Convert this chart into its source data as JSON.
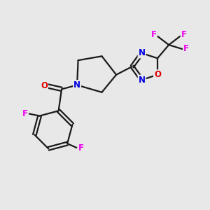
{
  "background_color": "#e8e8e8",
  "bond_color": "#1a1a1a",
  "line_width": 1.6,
  "atom_colors": {
    "F": "#ee00ee",
    "N": "#0000dd",
    "O": "#dd0000",
    "C": "#1a1a1a"
  },
  "font_size_atom": 8.5,
  "fig_width": 3.0,
  "fig_height": 3.0,
  "dpi": 100
}
